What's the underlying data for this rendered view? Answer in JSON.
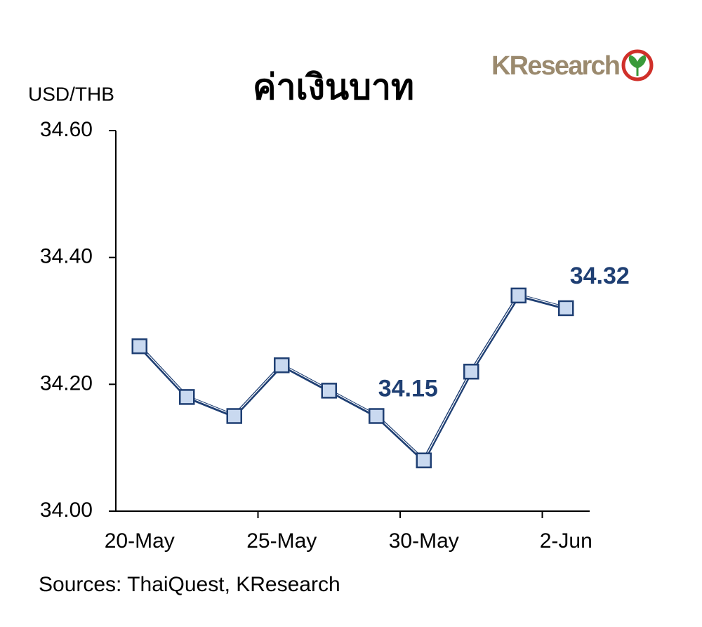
{
  "chart_data": {
    "type": "line",
    "title": "ค่าเงินบาท",
    "y_label": "USD/THB",
    "categories": [
      "20-May",
      null,
      null,
      "25-May",
      null,
      null,
      "30-May",
      null,
      null,
      "2-Jun"
    ],
    "series": [
      {
        "name": "USD/THB",
        "color": "#1f3f73",
        "marker_color": "#c9d9f0",
        "values": [
          34.26,
          34.18,
          34.15,
          34.23,
          34.19,
          34.15,
          34.08,
          34.22,
          34.34,
          34.32
        ],
        "value_labels": [
          null,
          null,
          null,
          null,
          null,
          "34.15",
          null,
          null,
          null,
          "34.32"
        ]
      }
    ],
    "ylim": [
      34.0,
      34.6
    ],
    "yticks": [
      {
        "value": 34.0,
        "label": "34.00"
      },
      {
        "value": 34.2,
        "label": "34.20"
      },
      {
        "value": 34.4,
        "label": "34.40"
      },
      {
        "value": 34.6,
        "label": "34.60"
      }
    ],
    "grid": false
  },
  "source": "Sources: ThaiQuest, KResearch",
  "logo": "KResearch"
}
